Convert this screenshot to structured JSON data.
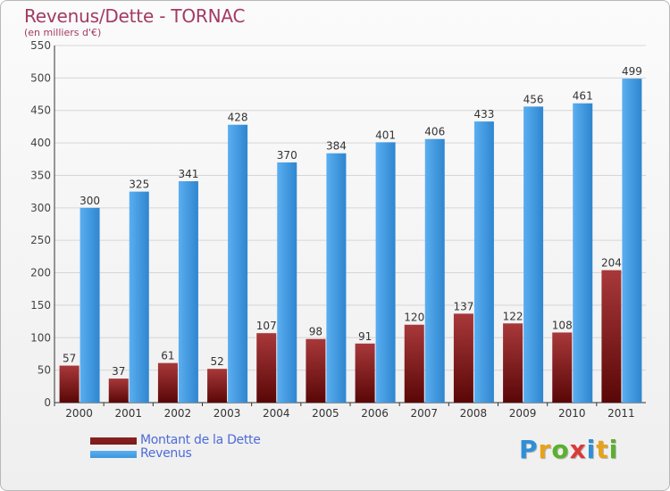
{
  "chart_data": {
    "type": "bar",
    "title": "Revenus/Dette - TORNAC",
    "subtitle": "(en milliers d'€)",
    "xlabel": "",
    "ylabel": "",
    "ylim": [
      0,
      550
    ],
    "yticks": [
      0,
      50,
      100,
      150,
      200,
      250,
      300,
      350,
      400,
      450,
      500,
      550
    ],
    "grid": true,
    "legend_position": "bottom-left",
    "categories": [
      "2000",
      "2001",
      "2002",
      "2003",
      "2004",
      "2005",
      "2006",
      "2007",
      "2008",
      "2009",
      "2010",
      "2011"
    ],
    "series": [
      {
        "name": "Montant de la Dette",
        "color": "#7a1a1a",
        "values": [
          57,
          37,
          61,
          52,
          107,
          98,
          91,
          120,
          137,
          122,
          108,
          204
        ]
      },
      {
        "name": "Revenus",
        "color": "#3d97dc",
        "values": [
          300,
          325,
          341,
          428,
          370,
          384,
          401,
          406,
          433,
          456,
          461,
          499
        ]
      }
    ]
  },
  "logo": {
    "text": "Proxiti",
    "colors": [
      "#2f8fd6",
      "#e8a21a",
      "#5bb02e",
      "#d93a3a",
      "#2f8fd6",
      "#e8a21a",
      "#5bb02e"
    ]
  }
}
